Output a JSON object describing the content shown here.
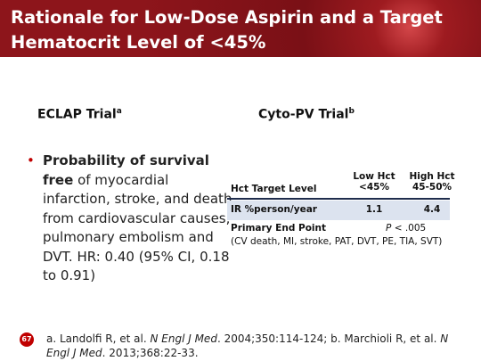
{
  "header": {
    "title": "Rationale for Low-Dose Aspirin and a Target Hematocrit Level of <45%"
  },
  "left": {
    "heading": "ECLAP Trial",
    "heading_sup": "a",
    "bullet_bold": "Probability of survival free",
    "bullet_rest": "of myocardial infarction, stroke, and death from cardiovascular causes, pulmonary embolism and DVT. HR: 0.40 (95% CI, 0.18 to 0.91)"
  },
  "right": {
    "heading": "Cyto-PV Trial",
    "heading_sup": "b",
    "table": {
      "header": {
        "label": "Hct Target Level",
        "col1_line1": "Low Hct",
        "col1_line2": "<45%",
        "col2_line1": "High Hct",
        "col2_line2": "45-50%"
      },
      "row": {
        "label": "IR %person/year",
        "col1": "1.1",
        "col2": "4.4"
      },
      "endpoint": {
        "label": "Primary End Point",
        "p_symbol": "P",
        "p_value": "< .005",
        "detail": "(CV death, MI, stroke, PAT, DVT, PE, TIA, SVT)"
      }
    }
  },
  "footer": {
    "page": "67",
    "ref_a_start": "a. Landolfi R, et al. ",
    "ref_a_journal": "N Engl J Med",
    "ref_a_end": ". 2004;350:114-124; b. Marchioli R, et al. ",
    "ref_b_journal": "N Engl J Med",
    "ref_b_end": ". 2013;368:22-33."
  }
}
